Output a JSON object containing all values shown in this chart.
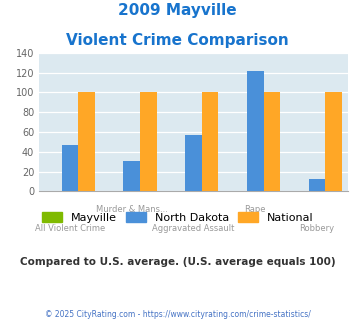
{
  "title_line1": "2009 Mayville",
  "title_line2": "Violent Crime Comparison",
  "title_color": "#1874CD",
  "cat_labels_row1": [
    "",
    "Murder & Mans...",
    "",
    "Rape",
    ""
  ],
  "cat_labels_row2": [
    "All Violent Crime",
    "",
    "Aggravated Assault",
    "",
    "Robbery"
  ],
  "mayville": [
    0,
    0,
    0,
    0,
    0
  ],
  "north_dakota": [
    47,
    31,
    57,
    122,
    13
  ],
  "national": [
    100,
    100,
    100,
    100,
    100
  ],
  "mayville_color": "#7FBA00",
  "nd_color": "#4A90D9",
  "national_color": "#FFA726",
  "ylim": [
    0,
    140
  ],
  "yticks": [
    0,
    20,
    40,
    60,
    80,
    100,
    120,
    140
  ],
  "plot_bg": "#dce9f0",
  "subtitle_text": "Compared to U.S. average. (U.S. average equals 100)",
  "copyright_text": "© 2025 CityRating.com - https://www.cityrating.com/crime-statistics/",
  "copyright_color": "#4472C4",
  "subtitle_color": "#333333",
  "bar_width": 0.27,
  "label_color": "#999999"
}
